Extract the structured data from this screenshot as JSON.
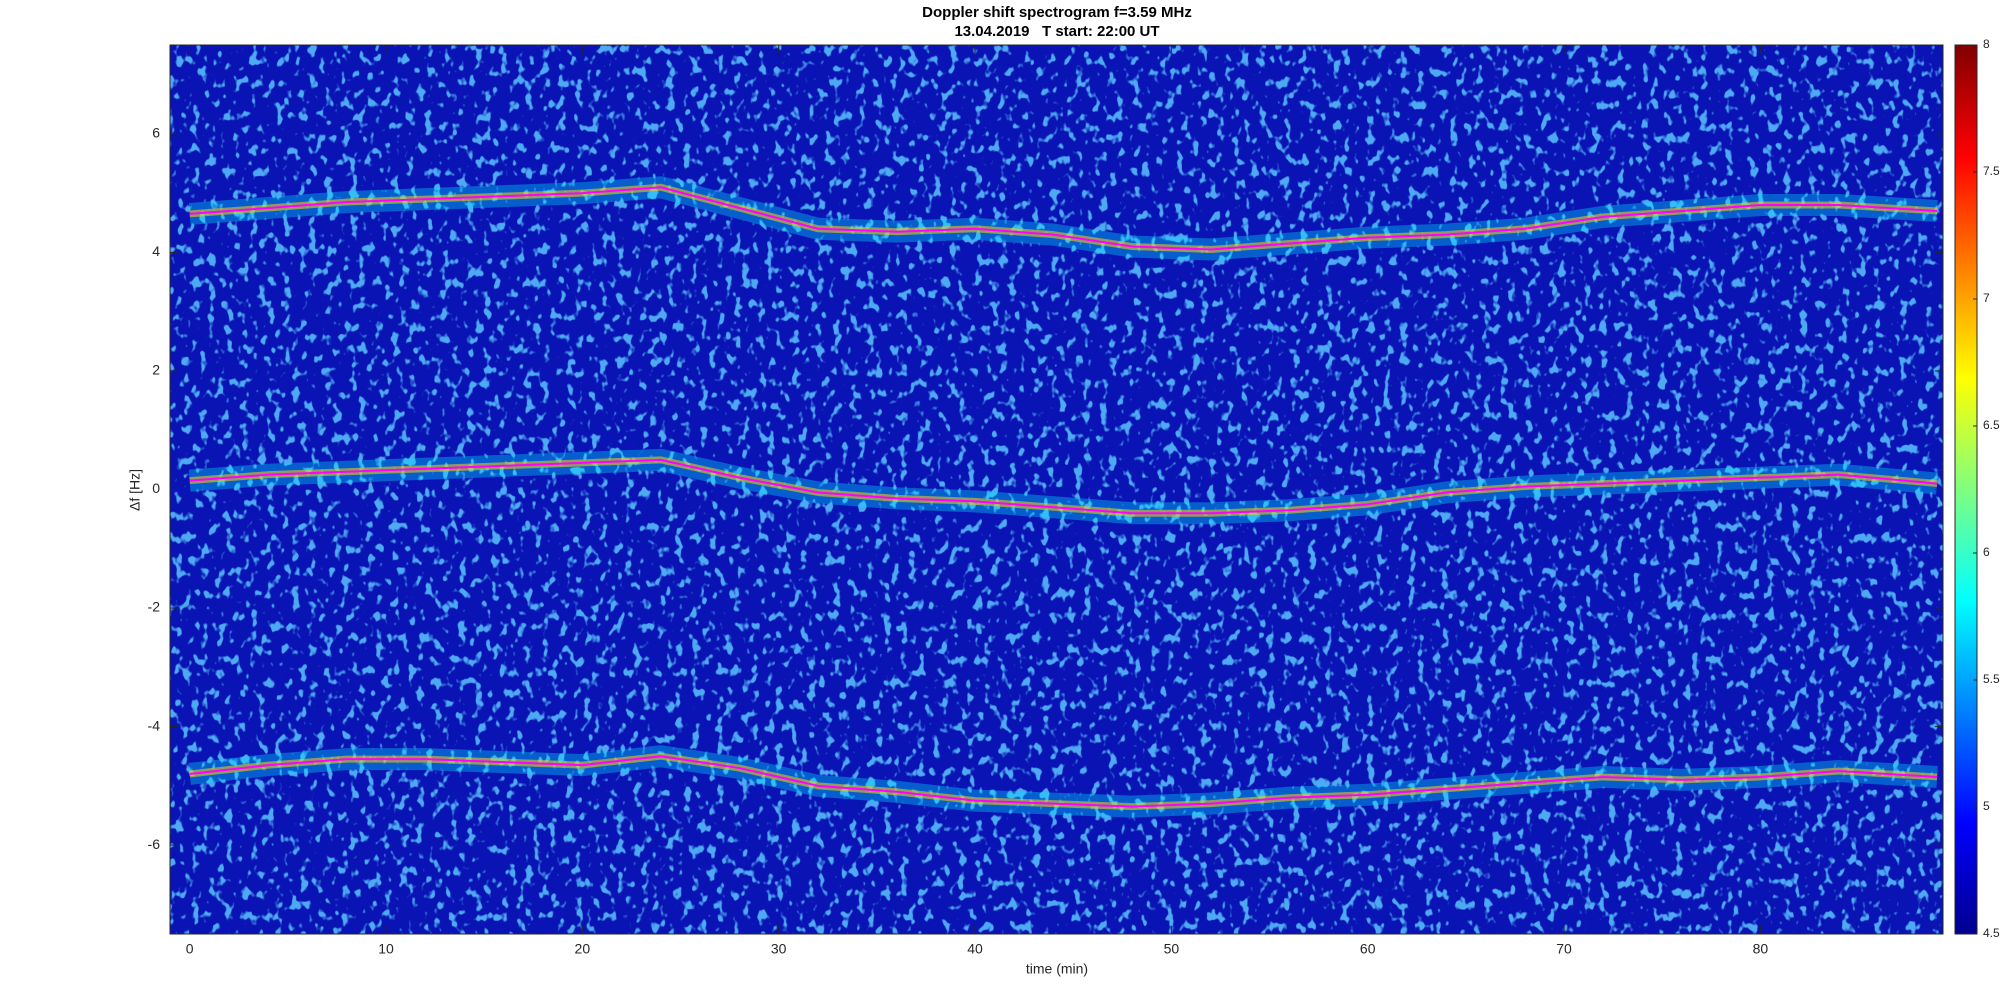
{
  "chart_data": {
    "type": "spectrogram",
    "title": "Doppler shift spectrogram f=3.59 MHz",
    "subtitle": "13.04.2019   T start: 22:00 UT",
    "x_label": "time (min)",
    "y_label": "Δf [Hz]",
    "xlim": [
      -1,
      89.3
    ],
    "xticks": [
      0,
      10,
      20,
      30,
      40,
      50,
      60,
      70,
      80
    ],
    "ylim": [
      -7.5,
      7.5
    ],
    "yticks": [
      -6,
      -4,
      -2,
      0,
      2,
      4,
      6
    ],
    "clim": [
      4.5,
      8
    ],
    "cticks": [
      4.5,
      5,
      5.5,
      6,
      6.5,
      7,
      7.5,
      8
    ],
    "x": [
      0,
      4,
      8,
      12,
      16,
      20,
      24,
      28,
      32,
      36,
      40,
      44,
      48,
      52,
      56,
      60,
      64,
      68,
      72,
      76,
      80,
      84,
      89
    ],
    "series": [
      {
        "color": "#ff00ff",
        "values": [
          4.65,
          4.75,
          4.85,
          4.9,
          4.95,
          5.0,
          5.1,
          4.75,
          4.4,
          4.35,
          4.4,
          4.3,
          4.1,
          4.05,
          4.15,
          4.25,
          4.3,
          4.4,
          4.6,
          4.7,
          4.8,
          4.8,
          4.7
        ]
      },
      {
        "color": "#ff00ff",
        "values": [
          0.15,
          0.25,
          0.3,
          0.35,
          0.4,
          0.45,
          0.5,
          0.2,
          -0.05,
          -0.15,
          -0.2,
          -0.3,
          -0.4,
          -0.4,
          -0.35,
          -0.25,
          -0.05,
          0.05,
          0.1,
          0.15,
          0.2,
          0.25,
          0.1
        ]
      },
      {
        "color": "#ff00ff",
        "values": [
          -4.8,
          -4.65,
          -4.55,
          -4.55,
          -4.6,
          -4.65,
          -4.5,
          -4.7,
          -5.0,
          -5.1,
          -5.25,
          -5.3,
          -5.35,
          -5.3,
          -5.2,
          -5.15,
          -5.05,
          -4.95,
          -4.85,
          -4.9,
          -4.85,
          -4.75,
          -4.85
        ]
      }
    ]
  }
}
